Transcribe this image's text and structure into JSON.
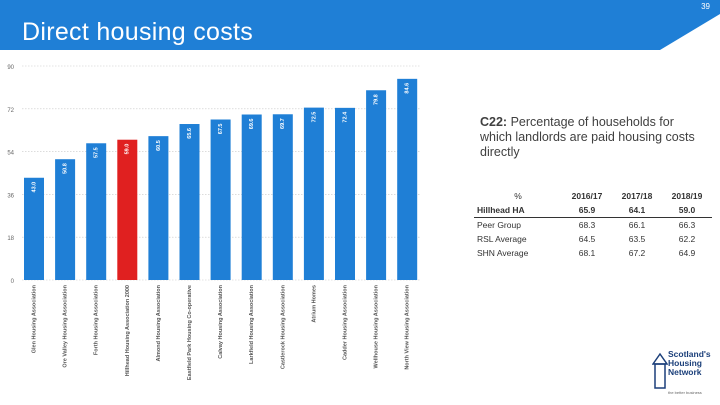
{
  "page_number": "39",
  "title": "Direct housing costs",
  "colors": {
    "header": "#1f7fd6",
    "bar": "#1f7fd6",
    "highlight": "#e02020",
    "grid": "#c8c8c8"
  },
  "callout": {
    "code": "C22:",
    "text": "Percentage of households for which landlords are paid housing costs directly"
  },
  "table": {
    "headers": [
      "%",
      "2016/17",
      "2017/18",
      "2018/19"
    ],
    "rows": [
      {
        "label": "Hillhead HA",
        "values": [
          "65.9",
          "64.1",
          "59.0"
        ]
      },
      {
        "label": "Peer Group",
        "values": [
          "68.3",
          "66.1",
          "66.3"
        ]
      },
      {
        "label": "RSL Average",
        "values": [
          "64.5",
          "63.5",
          "62.2"
        ]
      },
      {
        "label": "SHN Average",
        "values": [
          "68.1",
          "67.2",
          "64.9"
        ]
      }
    ]
  },
  "logo": {
    "lines": [
      "Scotland's",
      "Housing",
      "Network"
    ],
    "tagline": "the better business"
  },
  "chart_data": {
    "type": "bar",
    "categories": [
      "Glen Housing Association",
      "Ore Valley Housing Association",
      "Forth Housing Association",
      "Hillhead Housing Association 2000",
      "Almond Housing Association",
      "Eastfield Park Housing Co-operative",
      "Calvay Housing Association",
      "Larkfield Housing Association",
      "Castlerock Housing Association",
      "Atrium Homes",
      "Cadder Housing Association",
      "Wellhouse Housing Association",
      "North View Housing Association"
    ],
    "values": [
      43.0,
      50.8,
      57.5,
      59.0,
      60.5,
      65.6,
      67.5,
      69.6,
      69.7,
      72.5,
      72.4,
      79.8,
      84.6
    ],
    "value_labels": [
      "43.0",
      "50.8",
      "57.5",
      "59.0",
      "60.5",
      "65.6",
      "67.5",
      "69.6",
      "69.7",
      "72.5",
      "72.4",
      "79.8",
      "84.6"
    ],
    "highlight_index": 3,
    "y_ticks": [
      "0",
      "18",
      "36",
      "54",
      "72",
      "90"
    ],
    "ylim": [
      0,
      90
    ],
    "grid": true,
    "xlabel": "",
    "ylabel": ""
  }
}
